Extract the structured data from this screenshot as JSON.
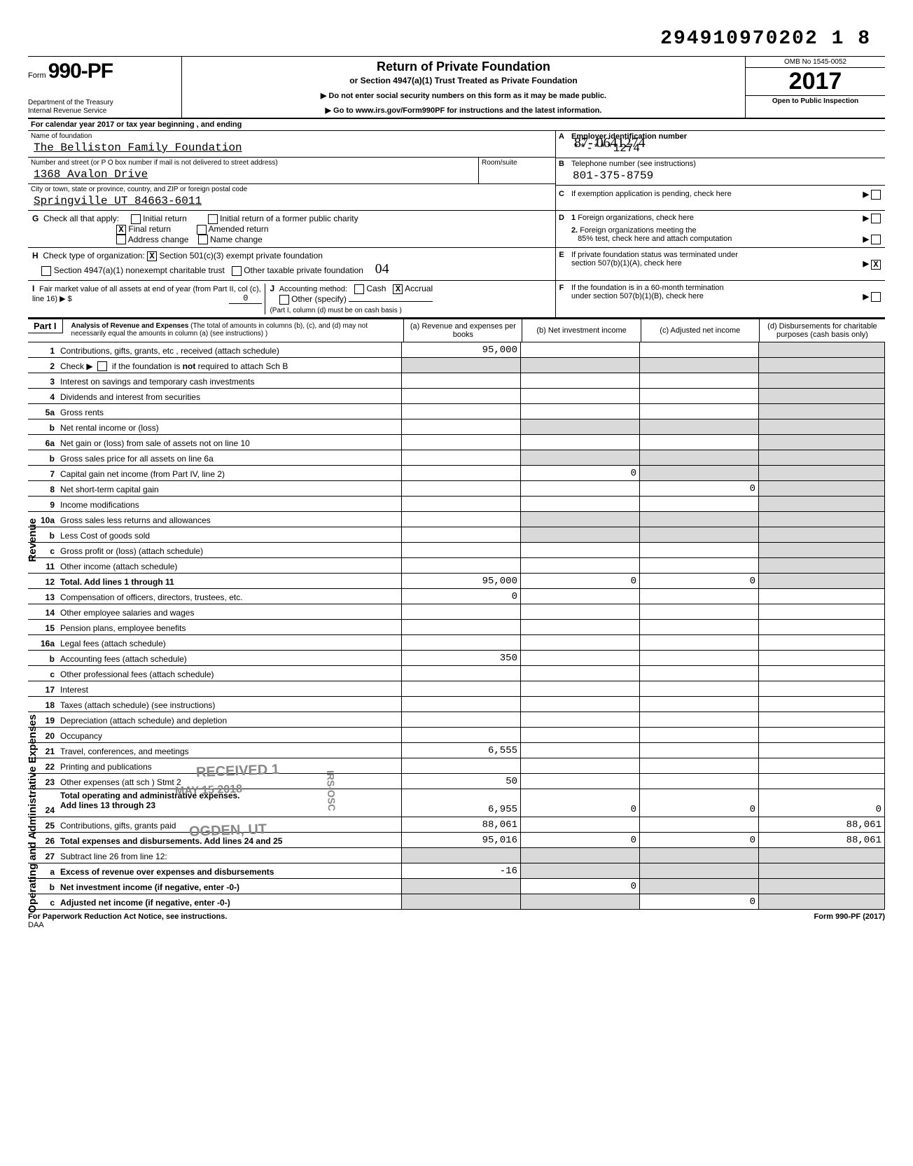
{
  "top_stamp": "294910970202 1   8",
  "form": {
    "prefix": "Form",
    "number": "990-PF",
    "dept1": "Department of the Treasury",
    "dept2": "Internal Revenue Service"
  },
  "title": "Return of Private Foundation",
  "subtitle": "or Section 4947(a)(1) Trust Treated as Private Foundation",
  "warn1": "▶ Do not enter social security numbers on this form as it may be made public.",
  "warn2": "▶ Go to www.irs.gov/Form990PF for instructions and the latest information.",
  "omb": "OMB No  1545-0052",
  "year": "2017",
  "open": "Open to Public Inspection",
  "calline": "For calendar year 2017 or tax year beginning                         , and ending",
  "name_lbl": "Name of foundation",
  "name_val": "The Belliston Family Foundation",
  "addr_lbl": "Number and street (or P O  box number if mail is not delivered to street address)",
  "addr_val": "1368 Avalon Drive",
  "room_lbl": "Room/suite",
  "city_lbl": "City or town, state or province, country, and ZIP or foreign postal code",
  "city_val": "Springville            UT 84663-6011",
  "A_lbl": "Employer identification number",
  "A_hand": "87- 0641274",
  "A_val": "**-***1274",
  "B_lbl": "Telephone number (see instructions)",
  "B_val": "801-375-8759",
  "C_lbl": "If exemption application is pending, check here",
  "D1": "Foreign organizations, check here",
  "D2a": "Foreign organizations meeting the",
  "D2b": "85% test, check here and attach computation",
  "E1": "If private foundation status was terminated under",
  "E2": "section 507(b)(1)(A), check here",
  "F1": "If the foundation is in a 60-month termination",
  "F2": "under section 507(b)(1)(B), check here",
  "G": "Check all that apply:",
  "G_opts": [
    "Initial return",
    "Final return",
    "Address change",
    "Initial return of a former public charity",
    "Amended return",
    "Name change"
  ],
  "G_checked_final": "X",
  "H": "Check type of organization:",
  "H1": "Section 501(c)(3) exempt private foundation",
  "H2": "Section 4947(a)(1) nonexempt charitable trust",
  "H3": "Other taxable private foundation",
  "H_checked": "X",
  "H_hand": "04",
  "E_checked": "X",
  "I": "Fair market value of all assets at end of year (from Part II, col  (c), line 16) ▶  $",
  "I_val": "0",
  "J": "Accounting method:",
  "J_cash": "Cash",
  "J_accrual": "Accrual",
  "J_other": "Other (specify)",
  "J_checked_accrual": "X",
  "J_note": "(Part I, column (d) must be on cash basis )",
  "part1": "Part I",
  "part1_title": "Analysis of Revenue and Expenses",
  "part1_sub": "(The total of amounts in columns (b), (c), and (d) may not necessarily equal the amounts in column (a) (see instructions) )",
  "col_a": "(a) Revenue and expenses per books",
  "col_b": "(b) Net investment income",
  "col_c": "(c) Adjusted net income",
  "col_d": "(d) Disbursements for charitable purposes (cash basis only)",
  "side_rev": "Revenue",
  "side_exp": "Operating and Administrative Expenses",
  "rows": {
    "1": {
      "d": "Contributions, gifts, grants, etc , received (attach schedule)",
      "a": "95,000"
    },
    "2": {
      "d": "Check ▶        if the foundation is not required to attach Sch  B"
    },
    "3": {
      "d": "Interest on savings and temporary cash investments"
    },
    "4": {
      "d": "Dividends and interest from securities"
    },
    "5a": {
      "d": "Gross rents"
    },
    "5b": {
      "n": "b",
      "d": "Net rental income or (loss)"
    },
    "6a": {
      "d": "Net gain or (loss) from sale of assets not on line 10"
    },
    "6b": {
      "n": "b",
      "d": "Gross sales price for all assets on line 6a"
    },
    "7": {
      "d": "Capital gain net income (from Part IV, line 2)",
      "b": "0"
    },
    "8": {
      "d": "Net short-term capital gain",
      "c": "0"
    },
    "9": {
      "d": "Income modifications"
    },
    "10a": {
      "d": "Gross sales less returns and allowances"
    },
    "10b": {
      "n": "b",
      "d": "Less  Cost of goods sold"
    },
    "10c": {
      "n": "c",
      "d": "Gross profit or (loss) (attach schedule)"
    },
    "11": {
      "d": "Other income (attach schedule)"
    },
    "12": {
      "d": "Total. Add lines 1 through 11",
      "bold": true,
      "a": "95,000",
      "b": "0",
      "c": "0"
    },
    "13": {
      "d": "Compensation of officers, directors, trustees, etc.",
      "a": "0"
    },
    "14": {
      "d": "Other employee salaries and wages"
    },
    "15": {
      "d": "Pension plans, employee benefits"
    },
    "16a": {
      "d": "Legal fees (attach schedule)"
    },
    "16b": {
      "n": "b",
      "d": "Accounting fees (attach schedule)",
      "a": "350"
    },
    "16c": {
      "n": "c",
      "d": "Other professional fees (attach schedule)"
    },
    "17": {
      "d": "Interest"
    },
    "18": {
      "d": "Taxes (attach schedule) (see instructions)"
    },
    "19": {
      "d": "Depreciation (attach schedule) and depletion"
    },
    "20": {
      "d": "Occupancy"
    },
    "21": {
      "d": "Travel, conferences, and meetings",
      "a": "6,555"
    },
    "22": {
      "d": "Printing and publications"
    },
    "23": {
      "d": "Other expenses (att  sch )                    Stmt 2",
      "a": "50"
    },
    "24": {
      "d": "Total operating and administrative expenses. Add lines 13 through 23",
      "bold": true,
      "a": "6,955",
      "b": "0",
      "c": "0",
      "dd": "0"
    },
    "25": {
      "d": "Contributions, gifts, grants paid",
      "a": "88,061",
      "dd": "88,061"
    },
    "26": {
      "d": "Total expenses and disbursements. Add lines 24 and 25",
      "bold": true,
      "a": "95,016",
      "b": "0",
      "c": "0",
      "dd": "88,061"
    },
    "27": {
      "d": "Subtract line 26 from line 12:"
    },
    "27a": {
      "n": "a",
      "d": "Excess of revenue over expenses and disbursements",
      "bold": true,
      "a": "-16"
    },
    "27b": {
      "n": "b",
      "d": "Net investment income (if negative, enter -0-)",
      "bold": true,
      "b": "0"
    },
    "27c": {
      "n": "c",
      "d": "Adjusted net income (if negative, enter -0-)",
      "bold": true,
      "c": "0"
    }
  },
  "stamp1": "RECEIVED  1",
  "stamp2": "MAY 15 2018",
  "stamp3": "OGDEN, UT",
  "stamp4": "IRS-OSC",
  "foot_left": "For Paperwork Reduction Act Notice, see instructions.",
  "foot_daa": "DAA",
  "foot_right": "Form 990-PF (2017)"
}
